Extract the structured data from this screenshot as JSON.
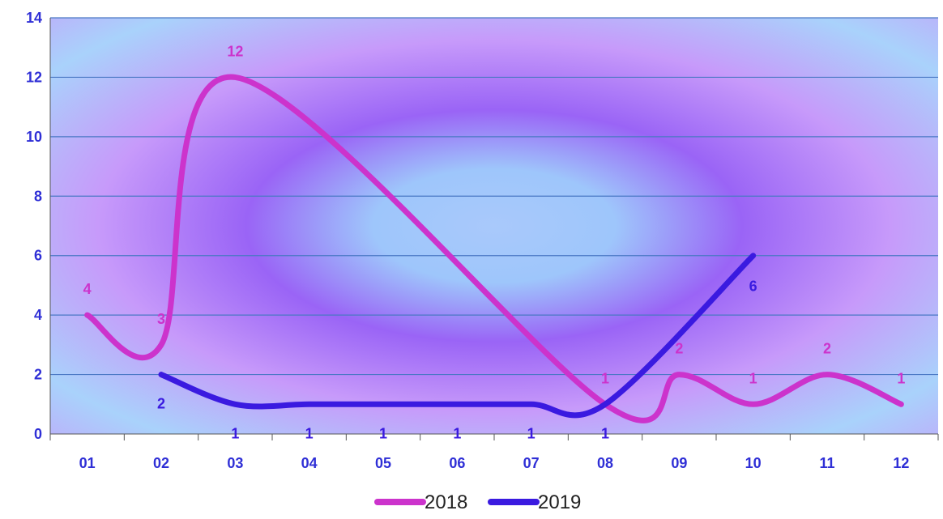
{
  "chart_data": {
    "type": "line",
    "categories": [
      "01",
      "02",
      "03",
      "04",
      "05",
      "06",
      "07",
      "08",
      "09",
      "10",
      "11",
      "12"
    ],
    "ylim": [
      0,
      14
    ],
    "yticks": [
      0,
      2,
      4,
      6,
      8,
      10,
      12,
      14
    ],
    "smooth": true,
    "grid": true,
    "legend_position": "bottom",
    "series": [
      {
        "name": "2018",
        "color": "#cc33cc",
        "values": [
          4,
          3,
          12,
          null,
          null,
          null,
          null,
          1,
          2,
          1,
          2,
          1
        ],
        "labels": [
          "4",
          "3",
          "12",
          "",
          "",
          "",
          "",
          "1",
          "2",
          "1",
          "2",
          "1"
        ]
      },
      {
        "name": "2019",
        "color": "#3a1ae0",
        "values": [
          null,
          2,
          1,
          1,
          1,
          1,
          1,
          1,
          null,
          6,
          null,
          null
        ],
        "labels": [
          "",
          "2",
          "1",
          "1",
          "1",
          "1",
          "1",
          "1",
          "",
          "6",
          "",
          ""
        ]
      }
    ]
  }
}
